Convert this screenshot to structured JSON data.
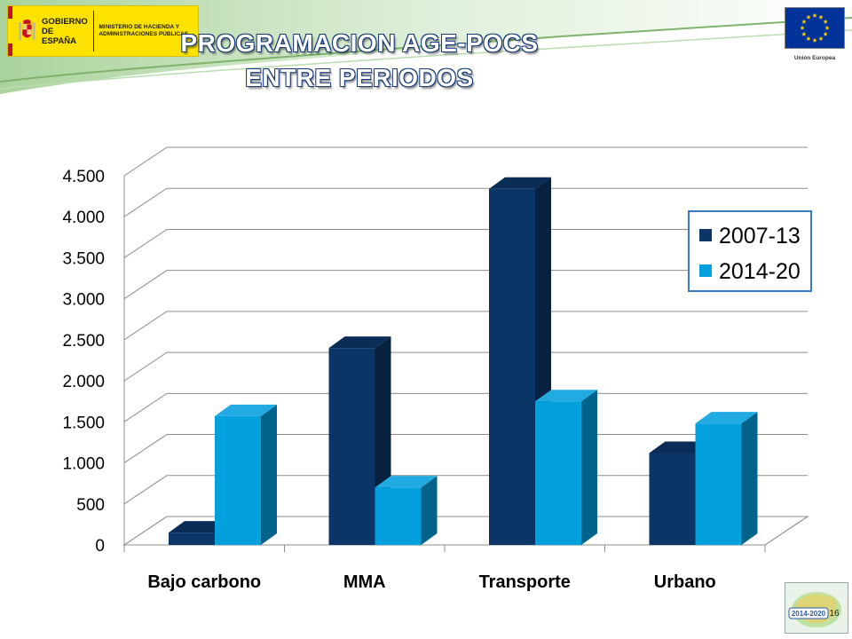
{
  "slide": {
    "title_line1": "PROGRAMACION AGE-POCS",
    "title_line2": "ENTRE PERIODOS",
    "page_number": "16"
  },
  "logos": {
    "gov_name": "GOBIERNO DE ESPAÑA",
    "ministry": "MINISTERIO DE HACIENDA Y ADMINISTRACIONES PÚBLICAS",
    "eu_label": "Unión Europea",
    "badge_text": "2014-2020"
  },
  "colors": {
    "series1": "#0b3566",
    "series2": "#03a0de",
    "title_outline": "#163a7a"
  },
  "chart_data": {
    "type": "bar",
    "style": "3d-clustered-column",
    "categories": [
      "Bajo carbono",
      "MMA",
      "Transporte",
      "Urbano"
    ],
    "series": [
      {
        "name": "2007-13",
        "values": [
          150,
          2400,
          4340,
          1120
        ]
      },
      {
        "name": "2014-20",
        "values": [
          1570,
          700,
          1750,
          1480
        ]
      }
    ],
    "ylim": [
      0,
      4500
    ],
    "yticks": [
      0,
      500,
      1000,
      1500,
      2000,
      2500,
      3000,
      3500,
      4000,
      4500
    ],
    "ytick_labels": [
      "0",
      "500",
      "1.000",
      "1.500",
      "2.000",
      "2.500",
      "3.000",
      "3.500",
      "4.000",
      "4.500"
    ],
    "grid": true,
    "legend_position": "right"
  }
}
